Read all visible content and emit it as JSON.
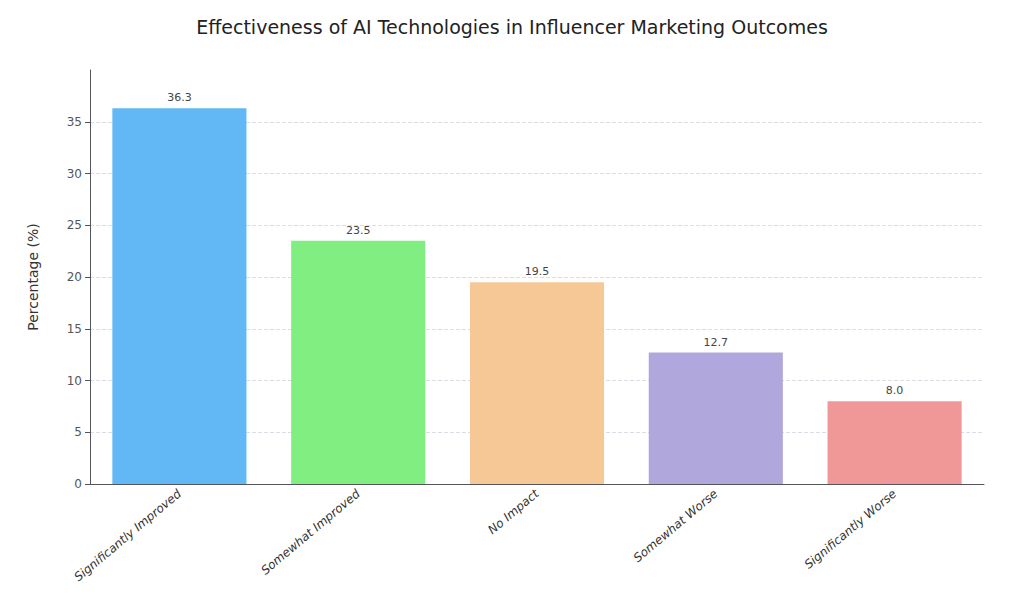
{
  "chart_data": {
    "type": "bar",
    "title": "Effectiveness of AI Technologies in Influencer Marketing Outcomes",
    "categories": [
      "Significantly Improved",
      "Somewhat Improved",
      "No Impact",
      "Somewhat Worse",
      "Significantly Worse"
    ],
    "values": [
      36.3,
      23.5,
      19.5,
      12.7,
      8.0
    ],
    "value_labels": [
      "36.3",
      "23.5",
      "19.5",
      "12.7",
      "8.0"
    ],
    "colors": [
      "#62B8F5",
      "#80EE80",
      "#F5C896",
      "#B0A8DC",
      "#F09898"
    ],
    "ylabel": "Percentage (%)",
    "ylim": [
      0,
      40
    ],
    "yticks": [
      0,
      5,
      10,
      15,
      20,
      25,
      30,
      35
    ],
    "grid": true,
    "data_labels": true
  }
}
